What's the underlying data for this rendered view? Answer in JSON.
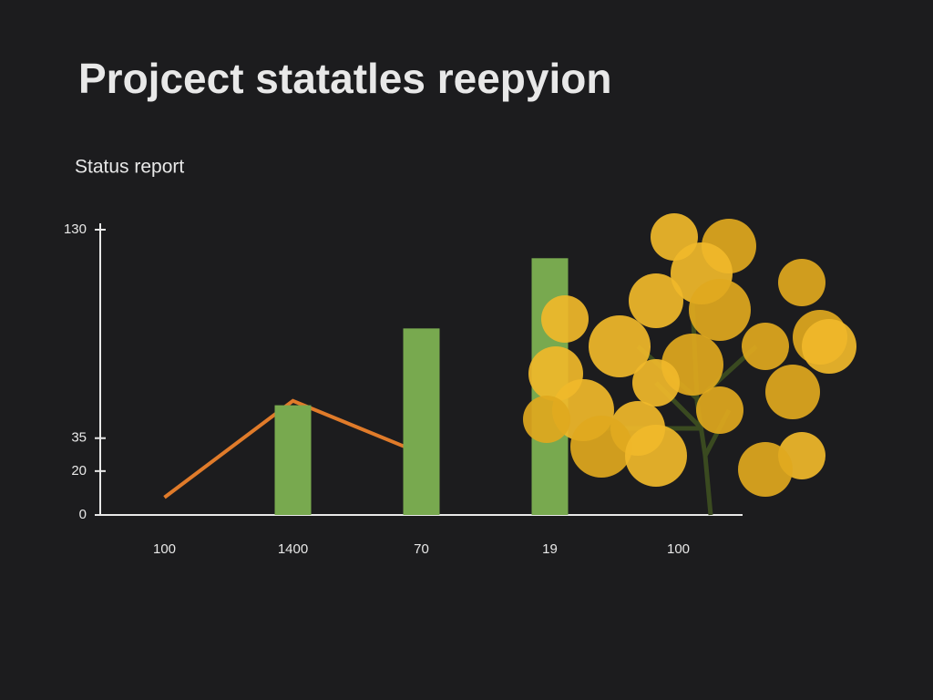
{
  "chart_data": {
    "type": "combo",
    "title": "Projcect statatles reepyion",
    "subtitle": "Status report",
    "categories": [
      "100",
      "1400",
      "70",
      "19",
      "100"
    ],
    "series": [
      {
        "type": "line",
        "color": "#e07b2a",
        "values": [
          8,
          52,
          28,
          null,
          null
        ]
      },
      {
        "type": "bar",
        "color": "#78a94f",
        "values": [
          null,
          50,
          85,
          117,
          null
        ]
      }
    ],
    "ylim": [
      0,
      130
    ],
    "yticks": [
      0,
      20,
      35,
      130
    ],
    "grid": false
  }
}
